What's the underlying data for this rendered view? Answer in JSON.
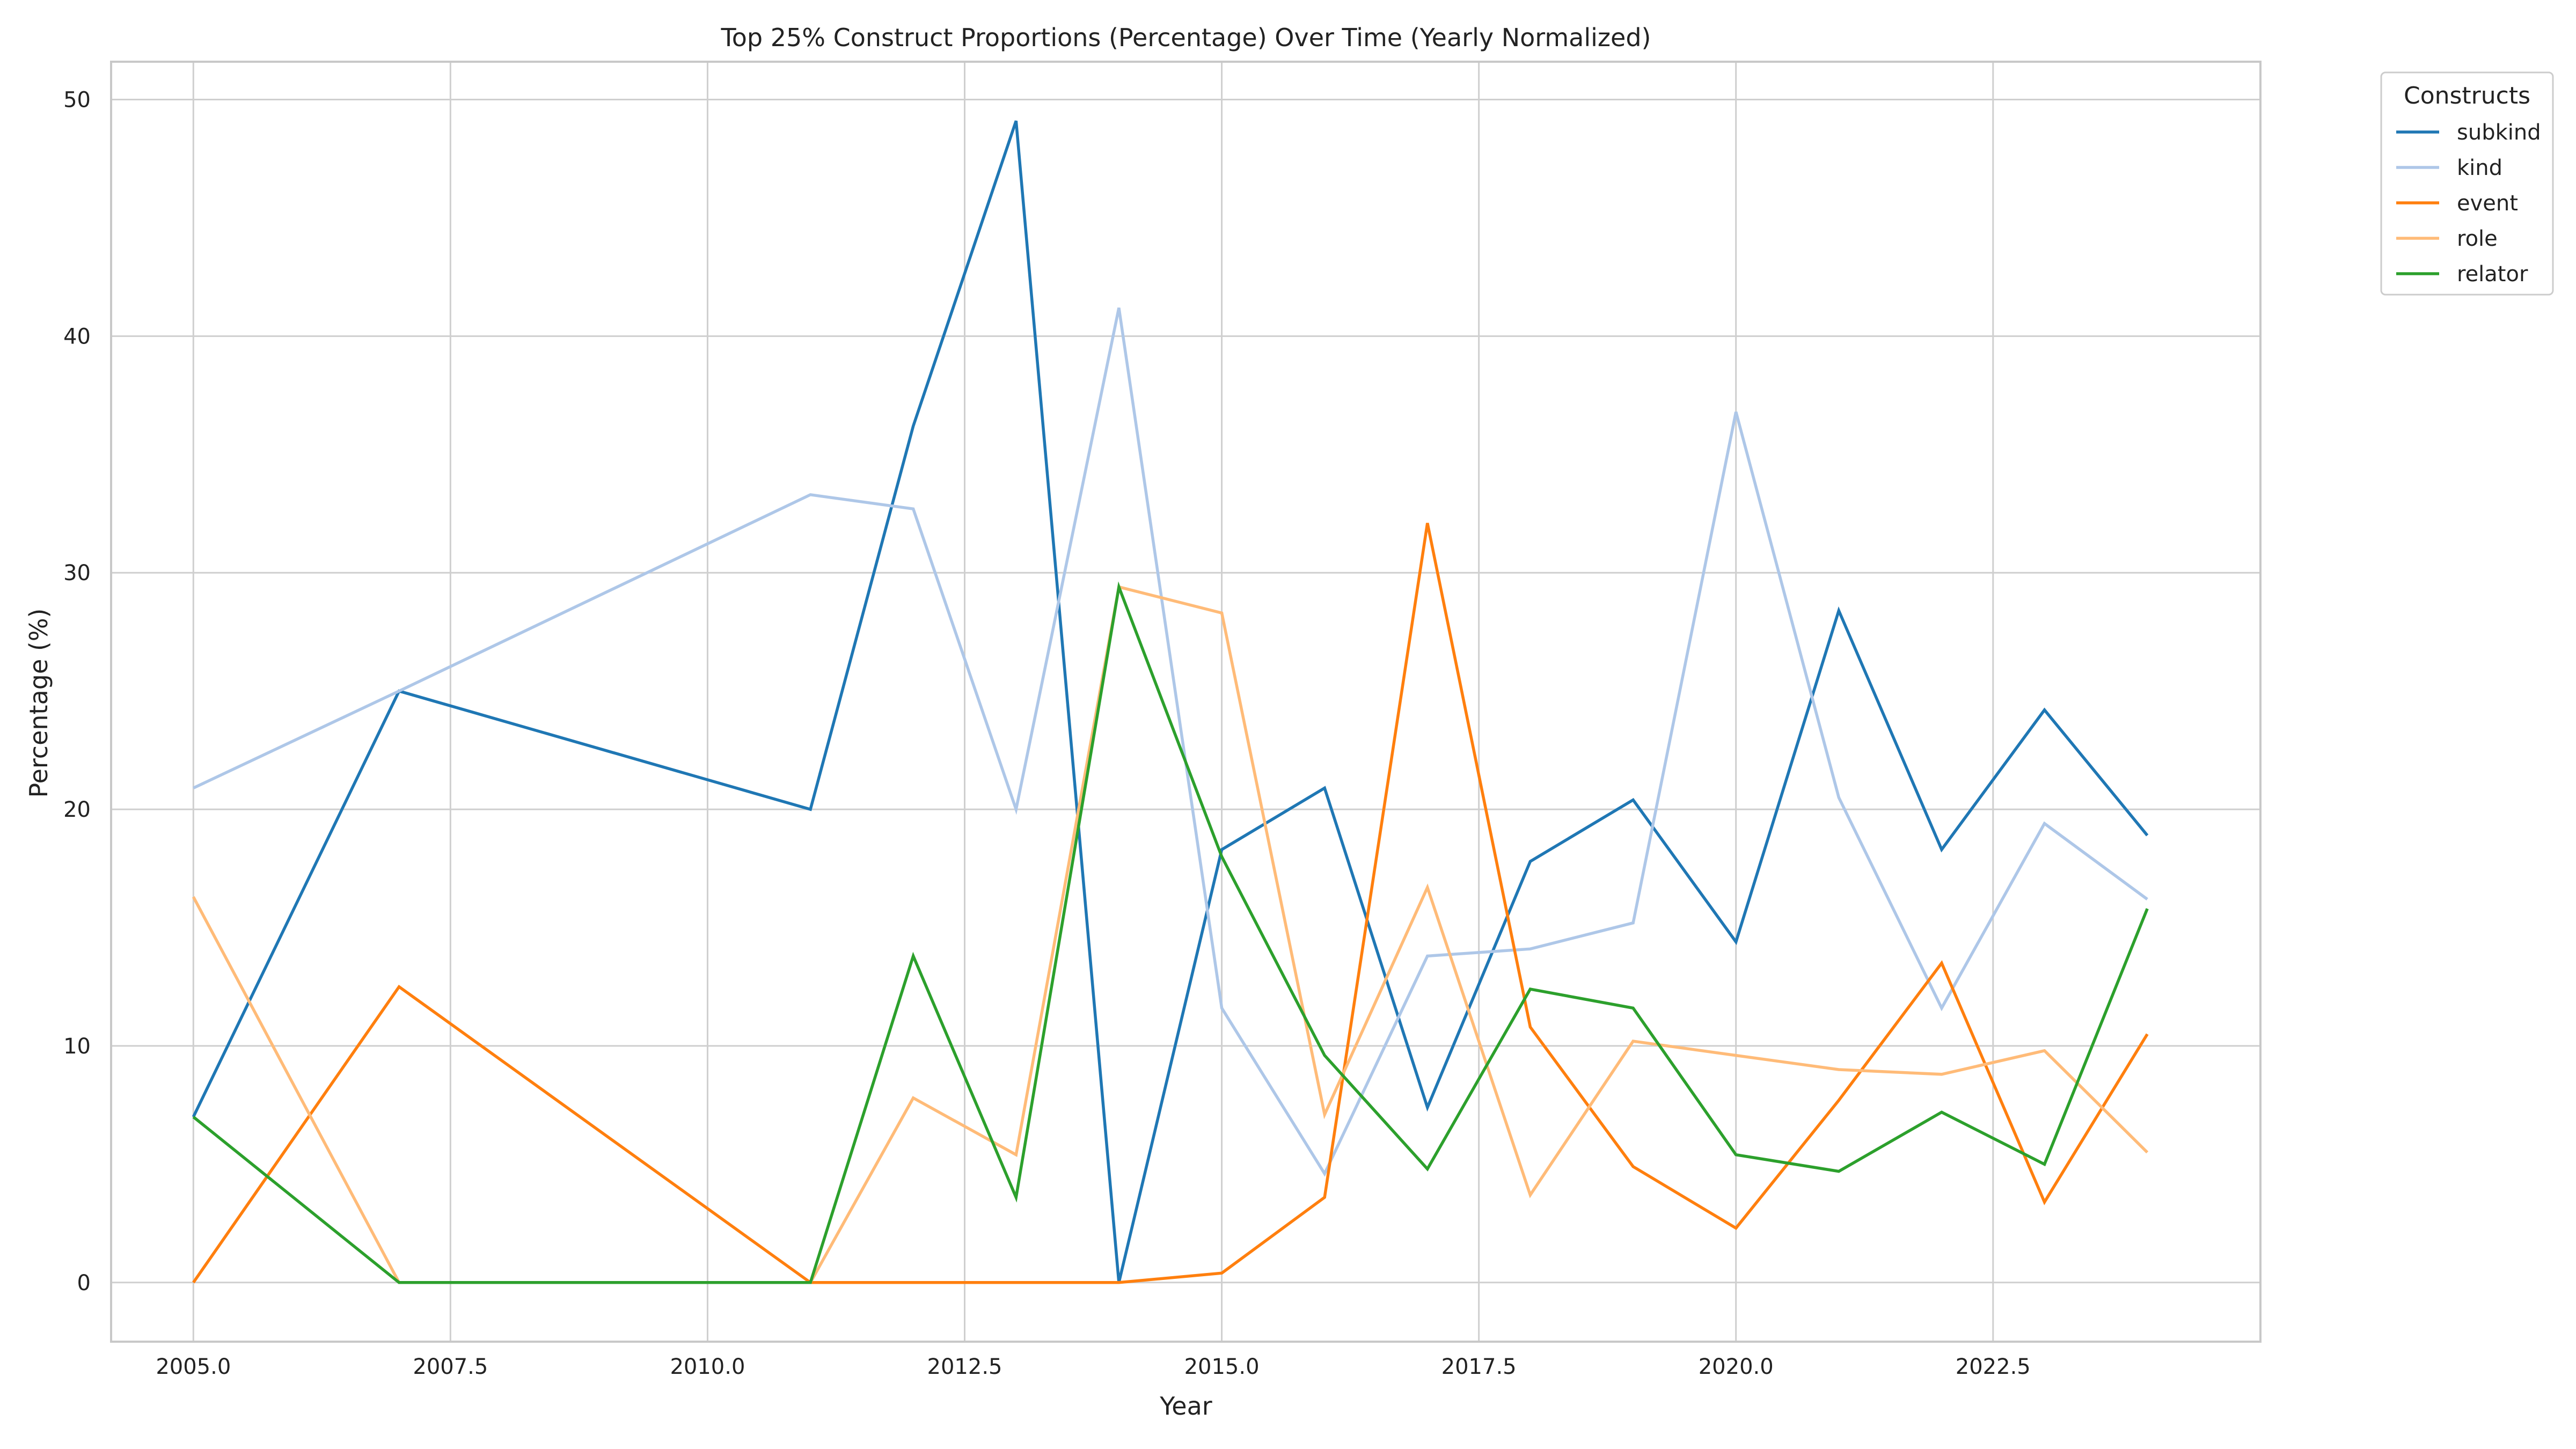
{
  "chart_data": {
    "type": "line",
    "title": "Top 25% Construct Proportions (Percentage) Over Time (Yearly Normalized)",
    "xlabel": "Year",
    "ylabel": "Percentage (%)",
    "xlim": [
      2004.2,
      2025.1
    ],
    "ylim": [
      -2.5,
      51.6
    ],
    "xticks": [
      2005.0,
      2007.5,
      2010.0,
      2012.5,
      2015.0,
      2017.5,
      2020.0,
      2022.5
    ],
    "xtick_labels": [
      "2005.0",
      "2007.5",
      "2010.0",
      "2012.5",
      "2015.0",
      "2017.5",
      "2020.0",
      "2022.5"
    ],
    "yticks": [
      0,
      10,
      20,
      30,
      40,
      50
    ],
    "ytick_labels": [
      "0",
      "10",
      "20",
      "30",
      "40",
      "50"
    ],
    "grid": true,
    "legend": {
      "title": "Constructs",
      "placement": "outside-top-right"
    },
    "x": [
      2005,
      2007,
      2011,
      2012,
      2013,
      2014,
      2015,
      2016,
      2017,
      2018,
      2019,
      2020,
      2021,
      2022,
      2023,
      2024
    ],
    "series": [
      {
        "name": "subkind",
        "color": "#1f77b4",
        "values": [
          7.0,
          25.0,
          20.0,
          36.2,
          49.1,
          0.0,
          18.3,
          20.9,
          7.4,
          17.8,
          20.4,
          14.4,
          28.4,
          18.3,
          24.2,
          18.9
        ]
      },
      {
        "name": "kind",
        "color": "#aec7e8",
        "values": [
          20.9,
          25.0,
          33.3,
          32.7,
          20.0,
          41.2,
          11.6,
          4.6,
          13.8,
          14.1,
          15.2,
          36.8,
          20.5,
          11.6,
          19.4,
          16.2
        ]
      },
      {
        "name": "event",
        "color": "#ff7f0e",
        "values": [
          0.0,
          12.5,
          0.0,
          0.0,
          0.0,
          0.0,
          0.4,
          3.6,
          32.1,
          10.8,
          4.9,
          2.3,
          7.7,
          13.5,
          3.4,
          10.5
        ]
      },
      {
        "name": "role",
        "color": "#ffbb78",
        "values": [
          16.3,
          0.0,
          0.0,
          7.8,
          5.4,
          29.4,
          28.3,
          7.1,
          16.7,
          3.7,
          10.2,
          9.6,
          9.0,
          8.8,
          9.8,
          5.5
        ]
      },
      {
        "name": "relator",
        "color": "#2ca02c",
        "values": [
          7.0,
          0.0,
          0.0,
          13.8,
          3.6,
          29.4,
          18.0,
          9.6,
          4.8,
          12.4,
          11.6,
          5.4,
          4.7,
          7.2,
          5.0,
          15.8
        ]
      }
    ]
  }
}
